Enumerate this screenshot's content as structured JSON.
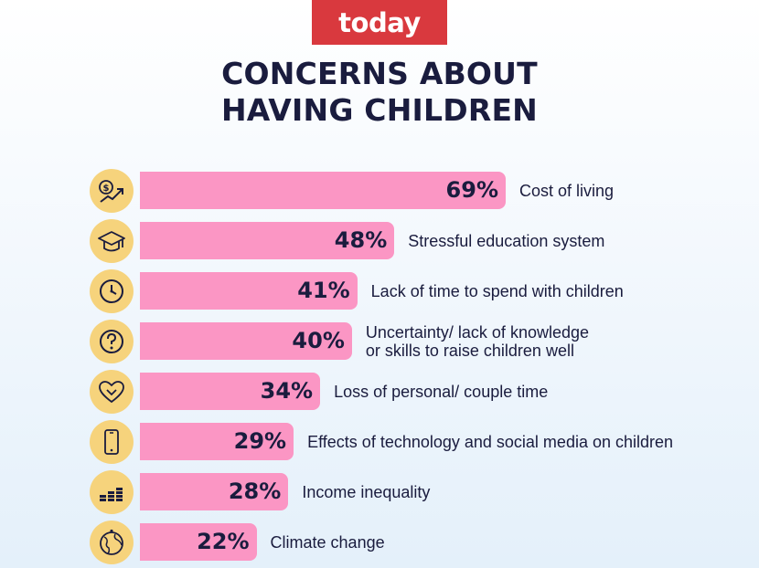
{
  "brand": {
    "logo_text": "today"
  },
  "chart_data": {
    "type": "bar",
    "orientation": "horizontal",
    "title": "CONCERNS ABOUT HAVING CHILDREN",
    "title_lines": [
      "CONCERNS ABOUT",
      "HAVING CHILDREN"
    ],
    "xlim": [
      0,
      100
    ],
    "unit": "%",
    "colors": {
      "bar": "#fb96c4",
      "icon_bg": "#f6d37c",
      "text": "#1a1c3e",
      "logo_bg": "#d9393e"
    },
    "items": [
      {
        "label": "Cost of living",
        "value": 69,
        "value_label": "69%",
        "icon": "money-growth-icon"
      },
      {
        "label": "Stressful education system",
        "value": 48,
        "value_label": "48%",
        "icon": "graduation-cap-icon"
      },
      {
        "label": "Lack of time to spend with children",
        "value": 41,
        "value_label": "41%",
        "icon": "clock-icon"
      },
      {
        "label": "Uncertainty/ lack of knowledge\nor skills to raise children well",
        "value": 40,
        "value_label": "40%",
        "icon": "question-icon"
      },
      {
        "label": "Loss of personal/ couple time",
        "value": 34,
        "value_label": "34%",
        "icon": "heart-icon"
      },
      {
        "label": "Effects of technology and social media on children",
        "value": 29,
        "value_label": "29%",
        "icon": "smartphone-icon"
      },
      {
        "label": "Income inequality",
        "value": 28,
        "value_label": "28%",
        "icon": "coin-stacks-icon"
      },
      {
        "label": "Climate change",
        "value": 22,
        "value_label": "22%",
        "icon": "globe-icon"
      }
    ]
  }
}
